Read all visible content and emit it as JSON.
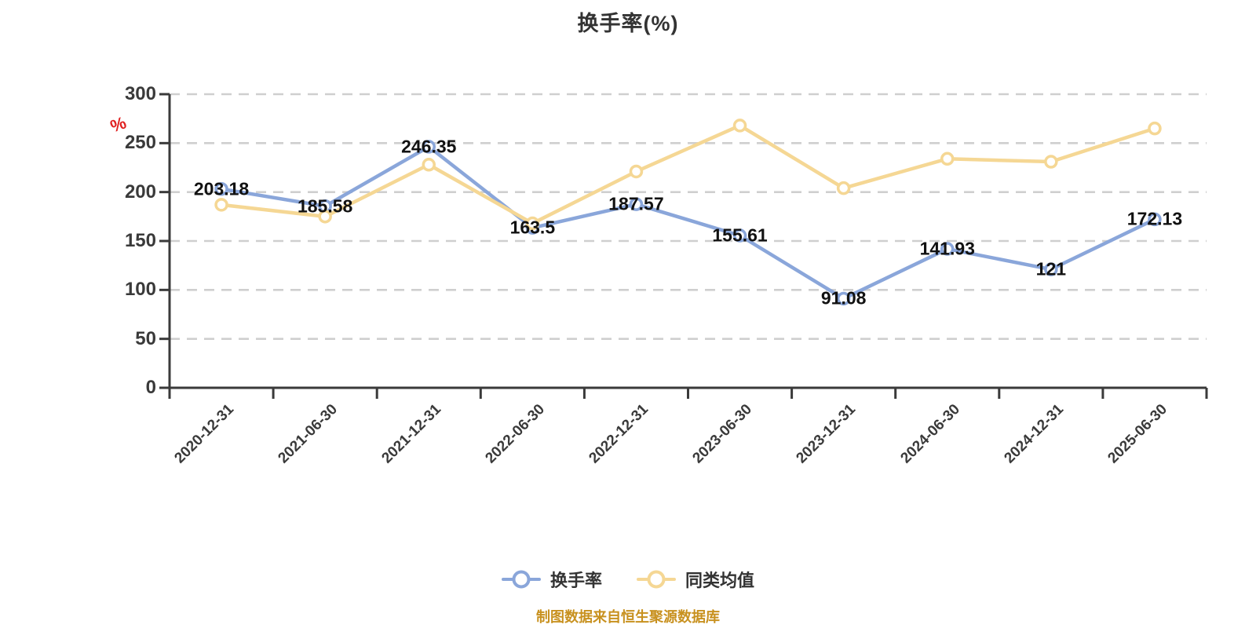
{
  "header": {
    "title": "换手率(%)"
  },
  "y_axis": {
    "unit": "%",
    "unit_color": "#E02020",
    "ticks": [
      0,
      50,
      100,
      150,
      200,
      250,
      300
    ]
  },
  "chart_data": {
    "type": "line",
    "title": "换手率(%)",
    "categories": [
      "2020-12-31",
      "2021-06-30",
      "2021-12-31",
      "2022-06-30",
      "2022-12-31",
      "2023-06-30",
      "2023-12-31",
      "2024-06-30",
      "2024-12-31",
      "2025-06-30"
    ],
    "series": [
      {
        "name": "换手率",
        "color": "#8AA6DA",
        "values": [
          203.18,
          185.58,
          246.35,
          163.5,
          187.57,
          155.61,
          91.08,
          141.93,
          121,
          172.13
        ],
        "data_labels": true
      },
      {
        "name": "同类均值",
        "color": "#F5D794",
        "values": [
          187,
          175,
          228,
          168,
          221,
          268,
          204,
          234,
          231,
          265
        ],
        "data_labels": false
      }
    ],
    "ylim": [
      0,
      300
    ],
    "xlabel": "",
    "ylabel": "%",
    "grid": "horizontal-dashed",
    "legend_position": "bottom"
  },
  "legend": {
    "items": [
      {
        "label": "换手率"
      },
      {
        "label": "同类均值"
      }
    ]
  },
  "footer": {
    "caption": "制图数据来自恒生聚源数据库",
    "color": "#C8911F"
  },
  "colors": {
    "axis": "#3A3A3A",
    "grid": "#CFCFCF",
    "text": "#333333",
    "data_label": "#111111",
    "background": "#FFFFFF"
  }
}
